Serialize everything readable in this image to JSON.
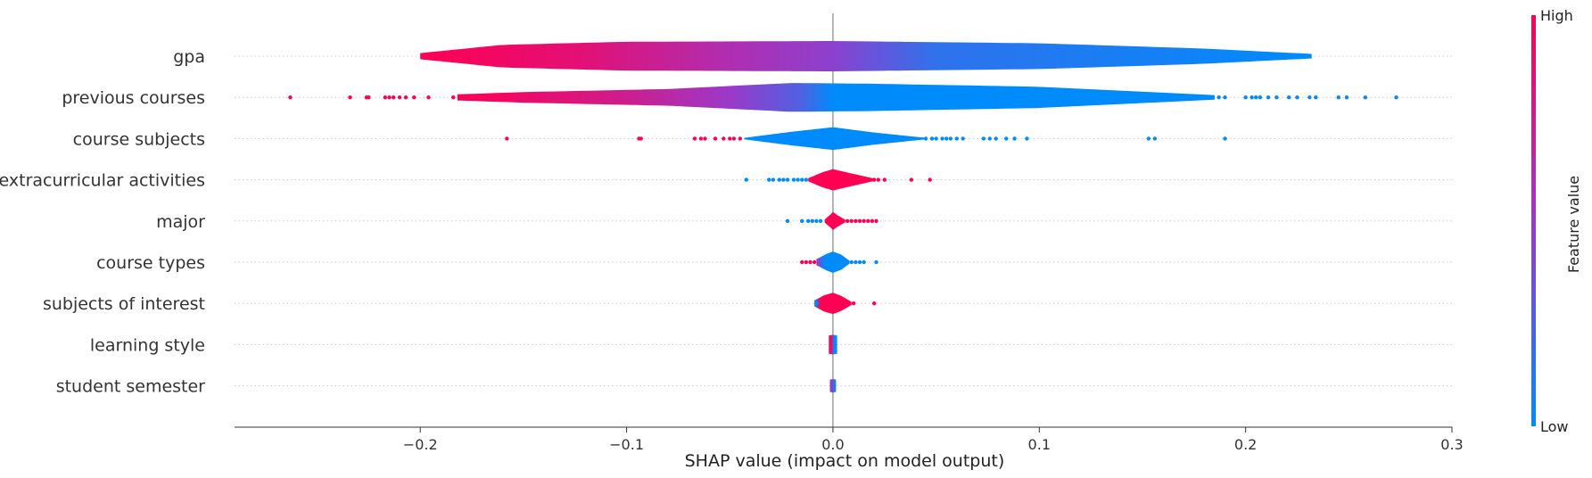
{
  "chart_data": {
    "type": "violin",
    "xlabel": "SHAP value (impact on model output)",
    "xlim": [
      -0.29,
      0.3
    ],
    "x_ticks": [
      -0.2,
      -0.1,
      0.0,
      0.1,
      0.2,
      0.3
    ],
    "x_tick_labels": [
      "−0.2",
      "−0.1",
      "0.0",
      "0.1",
      "0.2",
      "0.3"
    ],
    "colors": {
      "low": "#008bfb",
      "high": "#ff0052",
      "mid": "#9b39c9"
    },
    "colorbar": {
      "label": "Feature value",
      "high_label": "High",
      "low_label": "Low"
    },
    "features": [
      {
        "name": "gpa",
        "min": -0.2,
        "max": 0.232,
        "width_profile": [
          [
            -0.2,
            0.2
          ],
          [
            -0.16,
            0.75
          ],
          [
            -0.1,
            0.95
          ],
          [
            0.0,
            1.0
          ],
          [
            0.1,
            0.85
          ],
          [
            0.18,
            0.5
          ],
          [
            0.232,
            0.15
          ]
        ],
        "color_stops": [
          [
            -0.2,
            1.0
          ],
          [
            -0.12,
            0.85
          ],
          [
            -0.05,
            0.6
          ],
          [
            0.0,
            0.45
          ],
          [
            0.05,
            0.15
          ],
          [
            0.232,
            0.0
          ]
        ],
        "points": []
      },
      {
        "name": "previous courses",
        "min": -0.182,
        "max": 0.185,
        "width_profile": [
          [
            -0.182,
            0.2
          ],
          [
            -0.15,
            0.35
          ],
          [
            -0.08,
            0.55
          ],
          [
            -0.02,
            0.95
          ],
          [
            0.02,
            0.9
          ],
          [
            0.1,
            0.7
          ],
          [
            0.185,
            0.15
          ]
        ],
        "color_stops": [
          [
            -0.182,
            1.0
          ],
          [
            -0.1,
            0.75
          ],
          [
            -0.05,
            0.5
          ],
          [
            -0.015,
            0.25
          ],
          [
            0.0,
            0.0
          ],
          [
            0.185,
            0.0
          ]
        ],
        "points": [
          [
            -0.263,
            1
          ],
          [
            -0.234,
            1
          ],
          [
            -0.226,
            1
          ],
          [
            -0.225,
            1
          ],
          [
            -0.217,
            1
          ],
          [
            -0.215,
            1
          ],
          [
            -0.213,
            1
          ],
          [
            -0.21,
            1
          ],
          [
            -0.207,
            1
          ],
          [
            -0.203,
            1
          ],
          [
            -0.196,
            1
          ],
          [
            -0.184,
            1
          ],
          [
            0.187,
            0
          ],
          [
            0.19,
            0
          ],
          [
            0.2,
            0
          ],
          [
            0.203,
            0
          ],
          [
            0.205,
            0
          ],
          [
            0.207,
            0
          ],
          [
            0.211,
            0
          ],
          [
            0.215,
            0
          ],
          [
            0.221,
            0
          ],
          [
            0.225,
            0
          ],
          [
            0.231,
            0
          ],
          [
            0.234,
            0
          ],
          [
            0.245,
            0
          ],
          [
            0.249,
            0
          ],
          [
            0.258,
            0
          ],
          [
            0.273,
            0
          ]
        ]
      },
      {
        "name": "course subjects",
        "min": -0.043,
        "max": 0.045,
        "width_profile": [
          [
            -0.043,
            0.05
          ],
          [
            -0.02,
            0.45
          ],
          [
            0.0,
            0.75
          ],
          [
            0.02,
            0.4
          ],
          [
            0.045,
            0.05
          ]
        ],
        "color_stops": [
          [
            -0.043,
            0.0
          ],
          [
            0.045,
            0.0
          ]
        ],
        "points": [
          [
            -0.158,
            1
          ],
          [
            -0.094,
            1
          ],
          [
            -0.093,
            1
          ],
          [
            -0.067,
            1
          ],
          [
            -0.064,
            1
          ],
          [
            -0.062,
            1
          ],
          [
            -0.057,
            1
          ],
          [
            -0.053,
            1
          ],
          [
            -0.05,
            1
          ],
          [
            -0.048,
            1
          ],
          [
            -0.045,
            1
          ],
          [
            0.045,
            0
          ],
          [
            0.048,
            0
          ],
          [
            0.05,
            0
          ],
          [
            0.053,
            0
          ],
          [
            0.055,
            0
          ],
          [
            0.057,
            0
          ],
          [
            0.06,
            0
          ],
          [
            0.063,
            0
          ],
          [
            0.073,
            0
          ],
          [
            0.076,
            0
          ],
          [
            0.079,
            0
          ],
          [
            0.084,
            0
          ],
          [
            0.088,
            0
          ],
          [
            0.094,
            0
          ],
          [
            0.153,
            0
          ],
          [
            0.156,
            0
          ],
          [
            0.19,
            0
          ]
        ]
      },
      {
        "name": "extracurricular activities",
        "min": -0.012,
        "max": 0.02,
        "width_profile": [
          [
            -0.012,
            0.1
          ],
          [
            -0.005,
            0.5
          ],
          [
            0.0,
            0.7
          ],
          [
            0.008,
            0.45
          ],
          [
            0.02,
            0.08
          ]
        ],
        "color_stops": [
          [
            -0.012,
            1.0
          ],
          [
            0.02,
            1.0
          ]
        ],
        "points": [
          [
            -0.042,
            0
          ],
          [
            -0.031,
            0
          ],
          [
            -0.029,
            0
          ],
          [
            -0.026,
            0
          ],
          [
            -0.024,
            0
          ],
          [
            -0.022,
            0
          ],
          [
            -0.019,
            0
          ],
          [
            -0.017,
            0
          ],
          [
            -0.015,
            0
          ],
          [
            -0.013,
            0
          ],
          [
            0.02,
            1
          ],
          [
            0.022,
            1
          ],
          [
            0.025,
            1
          ],
          [
            0.038,
            1
          ],
          [
            0.047,
            1
          ]
        ]
      },
      {
        "name": "major",
        "min": -0.004,
        "max": 0.006,
        "width_profile": [
          [
            -0.004,
            0.1
          ],
          [
            -0.001,
            0.45
          ],
          [
            0.0,
            0.6
          ],
          [
            0.002,
            0.4
          ],
          [
            0.006,
            0.08
          ]
        ],
        "color_stops": [
          [
            -0.004,
            1.0
          ],
          [
            0.006,
            1.0
          ]
        ],
        "points": [
          [
            -0.022,
            0
          ],
          [
            -0.015,
            0
          ],
          [
            -0.012,
            0
          ],
          [
            -0.01,
            0
          ],
          [
            -0.008,
            0
          ],
          [
            -0.006,
            0
          ],
          [
            0.007,
            1
          ],
          [
            0.009,
            1
          ],
          [
            0.011,
            1
          ],
          [
            0.013,
            1
          ],
          [
            0.015,
            1
          ],
          [
            0.017,
            1
          ],
          [
            0.019,
            1
          ],
          [
            0.021,
            1
          ]
        ]
      },
      {
        "name": "course types",
        "min": -0.008,
        "max": 0.008,
        "width_profile": [
          [
            -0.008,
            0.2
          ],
          [
            -0.003,
            0.55
          ],
          [
            0.0,
            0.7
          ],
          [
            0.004,
            0.5
          ],
          [
            0.008,
            0.1
          ]
        ],
        "color_stops": [
          [
            -0.008,
            0.5
          ],
          [
            -0.004,
            0.0
          ],
          [
            0.008,
            0.0
          ]
        ],
        "points": [
          [
            -0.015,
            1
          ],
          [
            -0.013,
            1
          ],
          [
            -0.011,
            1
          ],
          [
            -0.009,
            1
          ],
          [
            0.009,
            0
          ],
          [
            0.011,
            0
          ],
          [
            0.013,
            0
          ],
          [
            0.015,
            0
          ],
          [
            0.021,
            0
          ]
        ]
      },
      {
        "name": "subjects of interest",
        "min": -0.009,
        "max": 0.009,
        "width_profile": [
          [
            -0.009,
            0.2
          ],
          [
            -0.004,
            0.55
          ],
          [
            0.0,
            0.7
          ],
          [
            0.004,
            0.5
          ],
          [
            0.009,
            0.1
          ]
        ],
        "color_stops": [
          [
            -0.009,
            0.0
          ],
          [
            -0.006,
            1.0
          ],
          [
            0.009,
            1.0
          ]
        ],
        "points": [
          [
            -0.008,
            0
          ],
          [
            0.01,
            1
          ],
          [
            0.02,
            1
          ]
        ]
      },
      {
        "name": "learning style",
        "min": -0.002,
        "max": 0.002,
        "width_profile": [
          [
            -0.002,
            0.6
          ],
          [
            0.0,
            0.65
          ],
          [
            0.002,
            0.6
          ]
        ],
        "color_stops": [
          [
            -0.002,
            1.0
          ],
          [
            -0.0005,
            0.8
          ],
          [
            0.0005,
            0.0
          ],
          [
            0.002,
            0.0
          ]
        ],
        "points": []
      },
      {
        "name": "student semester",
        "min": -0.0015,
        "max": 0.0015,
        "width_profile": [
          [
            -0.0015,
            0.4
          ],
          [
            0.0,
            0.45
          ],
          [
            0.0015,
            0.4
          ]
        ],
        "color_stops": [
          [
            -0.0015,
            0.6
          ],
          [
            0.0015,
            0.0
          ]
        ],
        "points": []
      }
    ]
  }
}
